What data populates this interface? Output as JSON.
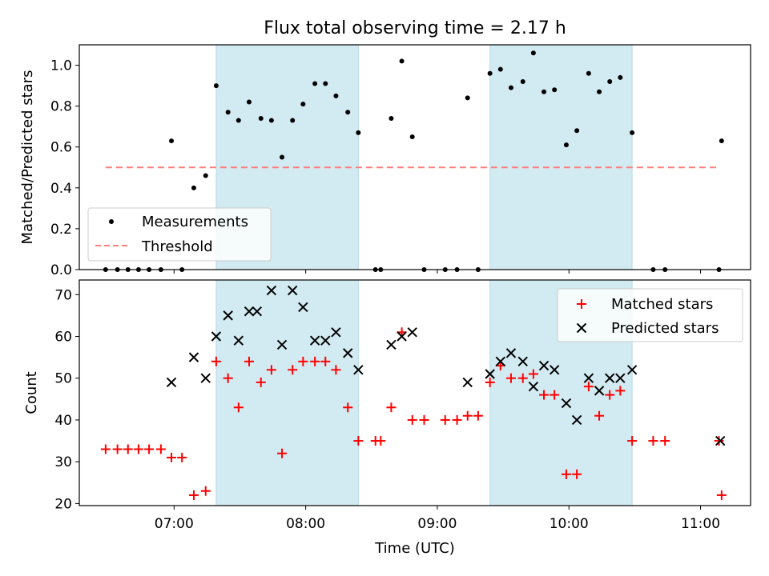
{
  "chart_data": [
    {
      "type": "scatter",
      "title": "Flux total observing time = 2.17 h",
      "xlabel": "",
      "ylabel": "Matched/Predicted stars",
      "xlim_hours": [
        6.28,
        11.38
      ],
      "ylim": [
        0,
        1.1
      ],
      "yticks": [
        0.0,
        0.2,
        0.4,
        0.6,
        0.8,
        1.0
      ],
      "ytick_labels": [
        "0.0",
        "0.2",
        "0.4",
        "0.6",
        "0.8",
        "1.0"
      ],
      "shaded_intervals_hours": [
        [
          7.32,
          8.4
        ],
        [
          9.4,
          10.48
        ]
      ],
      "shade_color": "#add8e6",
      "legend_position": "lower-left",
      "series": [
        {
          "name": "Measurements",
          "marker": "dot",
          "color": "#000000",
          "x_hours": [
            6.48,
            6.57,
            6.65,
            6.73,
            6.81,
            6.9,
            6.98,
            7.06,
            7.15,
            7.24,
            7.32,
            7.41,
            7.49,
            7.57,
            7.66,
            7.74,
            7.82,
            7.9,
            7.98,
            8.07,
            8.15,
            8.23,
            8.32,
            8.4,
            8.53,
            8.57,
            8.65,
            8.73,
            8.81,
            8.9,
            9.06,
            9.15,
            9.23,
            9.31,
            9.4,
            9.48,
            9.56,
            9.65,
            9.73,
            9.81,
            9.89,
            9.98,
            10.06,
            10.15,
            10.23,
            10.31,
            10.39,
            10.48,
            10.64,
            10.73,
            11.14,
            11.16
          ],
          "y": [
            0,
            0,
            0,
            0,
            0,
            0,
            0.63,
            0,
            0.4,
            0.46,
            0.9,
            0.77,
            0.73,
            0.82,
            0.74,
            0.73,
            0.55,
            0.73,
            0.81,
            0.91,
            0.91,
            0.85,
            0.77,
            0.67,
            0,
            0,
            0.74,
            1.02,
            0.65,
            0,
            0,
            0,
            0.84,
            0,
            0.96,
            0.98,
            0.89,
            0.92,
            1.06,
            0.87,
            0.88,
            0.61,
            0.68,
            0.96,
            0.87,
            0.92,
            0.94,
            0.67,
            0,
            0,
            0,
            0.63
          ]
        },
        {
          "name": "Threshold",
          "style": "dashed",
          "color": "#ff7f7f",
          "x_hours": [
            6.48,
            11.14
          ],
          "y": [
            0.5,
            0.5
          ]
        }
      ]
    },
    {
      "type": "scatter",
      "xlabel": "Time (UTC)",
      "ylabel": "Count",
      "xlim_hours": [
        6.28,
        11.38
      ],
      "ylim": [
        19.5,
        73.5
      ],
      "yticks": [
        20,
        30,
        40,
        50,
        60,
        70
      ],
      "ytick_labels": [
        "20",
        "30",
        "40",
        "50",
        "60",
        "70"
      ],
      "xticks_hours": [
        7,
        8,
        9,
        10,
        11
      ],
      "xtick_labels": [
        "07:00",
        "08:00",
        "09:00",
        "10:00",
        "11:00"
      ],
      "shaded_intervals_hours": [
        [
          7.32,
          8.4
        ],
        [
          9.4,
          10.48
        ]
      ],
      "shade_color": "#add8e6",
      "legend_position": "upper-right",
      "series": [
        {
          "name": "Matched stars",
          "marker": "plus",
          "color": "#ff0000",
          "x_hours": [
            6.48,
            6.57,
            6.65,
            6.73,
            6.81,
            6.9,
            6.98,
            7.06,
            7.15,
            7.24,
            7.32,
            7.41,
            7.49,
            7.57,
            7.66,
            7.74,
            7.82,
            7.9,
            7.98,
            8.07,
            8.15,
            8.23,
            8.32,
            8.4,
            8.53,
            8.57,
            8.65,
            8.73,
            8.81,
            8.9,
            9.06,
            9.15,
            9.23,
            9.31,
            9.4,
            9.48,
            9.56,
            9.65,
            9.73,
            9.81,
            9.89,
            9.98,
            10.06,
            10.15,
            10.23,
            10.31,
            10.39,
            10.48,
            10.64,
            10.73,
            11.14,
            11.16
          ],
          "y": [
            33,
            33,
            33,
            33,
            33,
            33,
            31,
            31,
            22,
            23,
            54,
            50,
            43,
            54,
            49,
            52,
            32,
            52,
            54,
            54,
            54,
            52,
            43,
            35,
            35,
            35,
            43,
            61,
            40,
            40,
            40,
            40,
            41,
            41,
            49,
            53,
            50,
            50,
            51,
            46,
            46,
            27,
            27,
            48,
            41,
            46,
            47,
            35,
            35,
            35,
            35,
            22
          ]
        },
        {
          "name": "Predicted stars",
          "marker": "x",
          "color": "#000000",
          "x_hours": [
            6.98,
            7.15,
            7.24,
            7.32,
            7.41,
            7.49,
            7.57,
            7.63,
            7.74,
            7.82,
            7.9,
            7.98,
            8.07,
            8.15,
            8.23,
            8.32,
            8.4,
            8.65,
            8.73,
            8.81,
            9.23,
            9.4,
            9.48,
            9.56,
            9.65,
            9.73,
            9.81,
            9.89,
            9.98,
            10.06,
            10.15,
            10.23,
            10.31,
            10.39,
            10.48,
            11.15
          ],
          "y": [
            49,
            55,
            50,
            60,
            65,
            59,
            66,
            66,
            71,
            58,
            71,
            67,
            59,
            59,
            61,
            56,
            52,
            58,
            60,
            61,
            49,
            51,
            54,
            56,
            54,
            48,
            53,
            52,
            44,
            40,
            50,
            47,
            50,
            50,
            52,
            35
          ]
        }
      ]
    }
  ]
}
